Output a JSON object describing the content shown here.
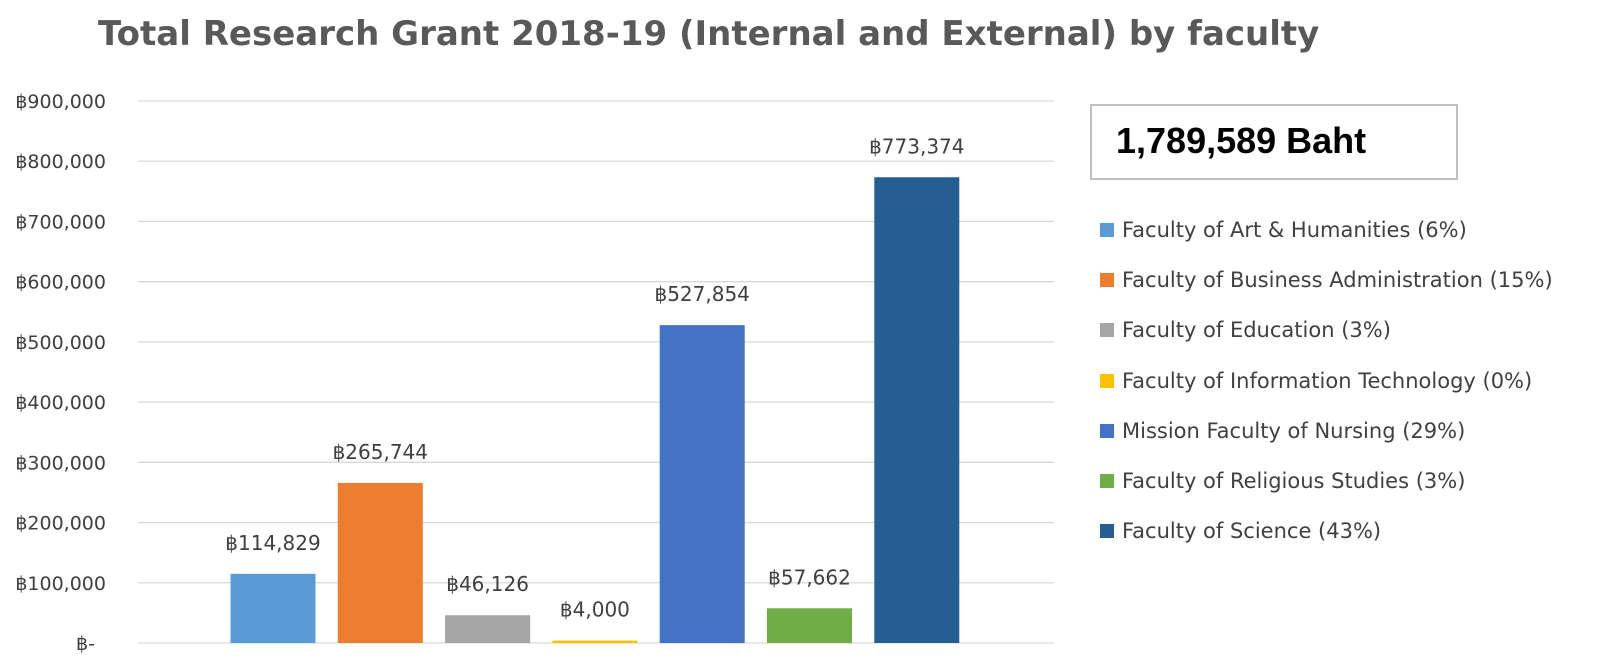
{
  "chart_data": {
    "type": "bar",
    "title": "Total Research Grant 2018-19 (Internal and External) by faculty",
    "xlabel": "",
    "ylabel": "",
    "ylim": [
      0,
      900000
    ],
    "grid": true,
    "legend_position": "right",
    "y_tick_labels": [
      "฿-",
      "฿100,000",
      "฿200,000",
      "฿300,000",
      "฿400,000",
      "฿500,000",
      "฿600,000",
      "฿700,000",
      "฿800,000",
      "฿900,000"
    ],
    "categories": [
      "Faculty of Art & Humanities (6%)",
      "Faculty of Business Administration (15%)",
      "Faculty of Education (3%)",
      "Faculty of Information Technology (0%)",
      "Mission Faculty of Nursing (29%)",
      "Faculty of Religious Studies (3%)",
      "Faculty of Science (43%)"
    ],
    "values": [
      114829,
      265744,
      46126,
      4000,
      527854,
      57662,
      773374
    ],
    "data_labels": [
      "฿114,829",
      "฿265,744",
      "฿46,126",
      "฿4,000",
      "฿527,854",
      "฿57,662",
      "฿773,374"
    ],
    "colors": [
      "#5b9bd5",
      "#ed7d31",
      "#a5a5a5",
      "#ffc000",
      "#4472c4",
      "#70ad47",
      "#255e91"
    ],
    "total_label": "1,789,589 Baht"
  }
}
